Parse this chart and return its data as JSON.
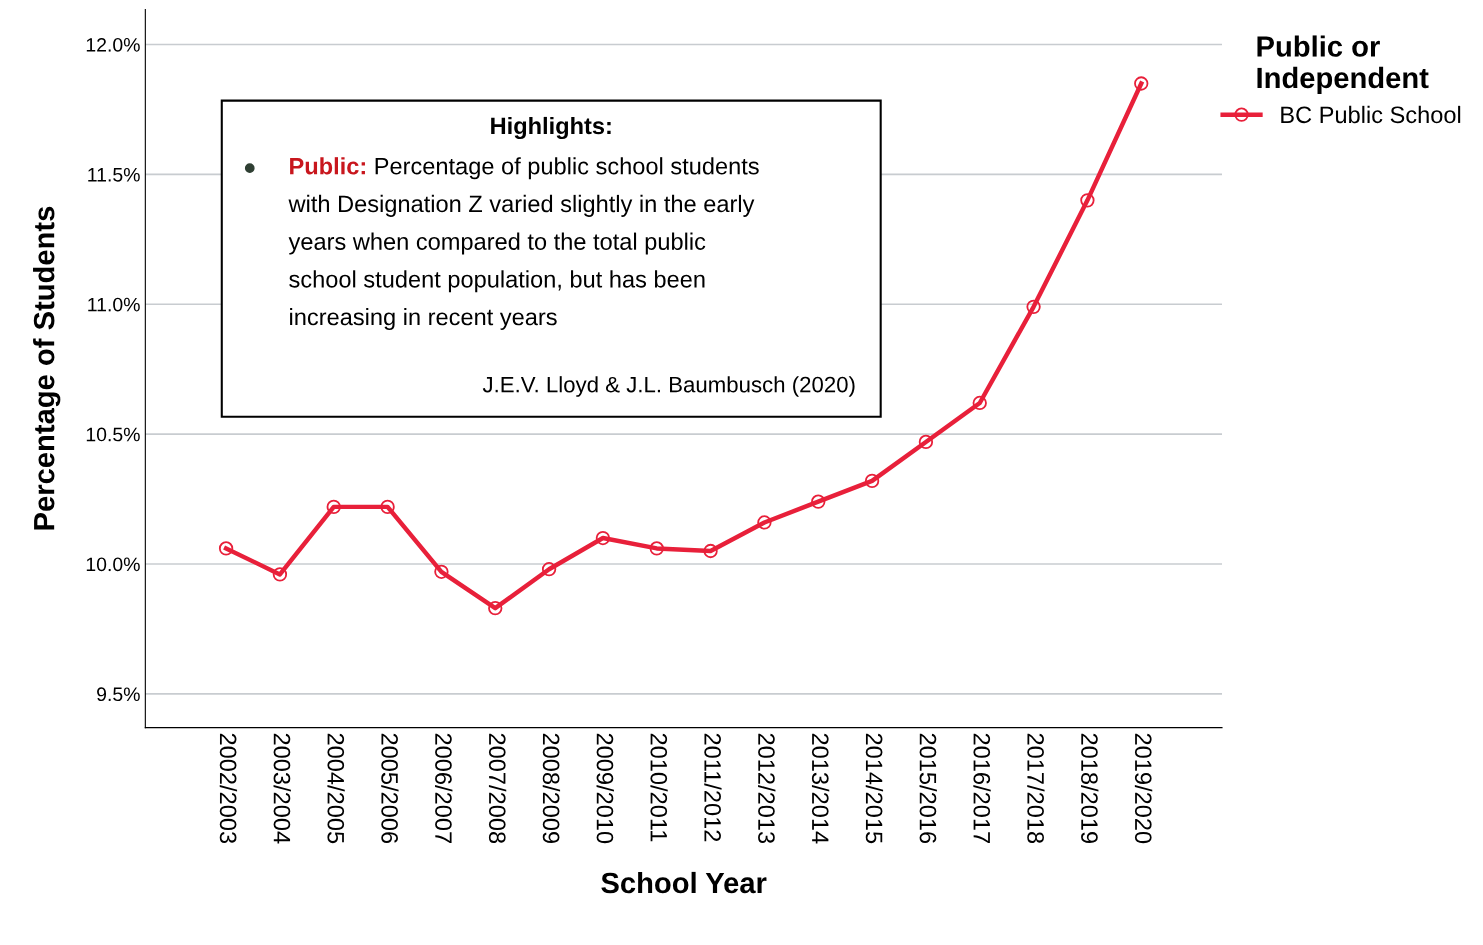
{
  "chart_data": {
    "type": "line",
    "xlabel": "School Year",
    "ylabel": "Percentage of Students",
    "legend_title": "Public or\nIndependent",
    "legend": "top right",
    "grid": "y",
    "marker": "circle",
    "line_style": "solid",
    "categories": [
      "2002/2003",
      "2003/2004",
      "2004/2005",
      "2005/2006",
      "2006/2007",
      "2007/2008",
      "2008/2009",
      "2009/2010",
      "2010/2011",
      "2011/2012",
      "2012/2013",
      "2013/2014",
      "2014/2015",
      "2015/2016",
      "2016/2017",
      "2017/2018",
      "2018/2019",
      "2019/2020"
    ],
    "series": [
      {
        "name": "BC Public School",
        "color": "#e8203a",
        "values": [
          10.06,
          9.96,
          10.22,
          10.22,
          9.97,
          9.83,
          9.98,
          10.1,
          10.06,
          10.05,
          10.16,
          10.24,
          10.32,
          10.47,
          10.62,
          10.99,
          11.4,
          11.85
        ]
      }
    ],
    "ylim": [
      9.37,
      12.135
    ],
    "yticks": [
      {
        "value": 9.5,
        "label": "9.5%"
      },
      {
        "value": 10.0,
        "label": "10.0%"
      },
      {
        "value": 10.5,
        "label": "10.5%"
      },
      {
        "value": 11.0,
        "label": "11.0%"
      },
      {
        "value": 11.5,
        "label": "11.5%"
      },
      {
        "value": 12.0,
        "label": "12.0%"
      }
    ],
    "annotations": [
      "Highlights:",
      "Public: Percentage of public school students\nwith Designation Z varied slightly in the early\nyears when compared to the total public\nschool student population, but has been\nincreasing in recent years",
      "J.E.V. Lloyd & J.L. Baumbusch (2020)"
    ]
  }
}
